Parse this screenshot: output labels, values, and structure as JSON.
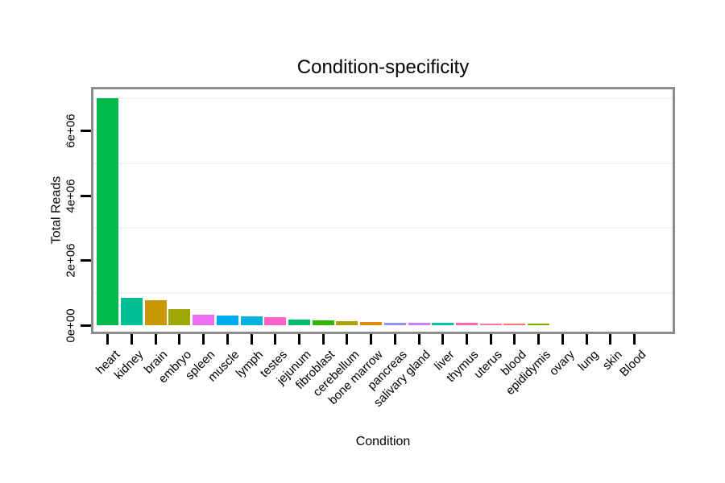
{
  "chart_data": {
    "type": "bar",
    "title": "Condition-specificity",
    "xlabel": "Condition",
    "ylabel": "Total Reads",
    "legend": "none",
    "grid": "minor-horizontal-only",
    "x_label_angle": 45,
    "bar_width_fraction": 0.9,
    "ylim": [
      0,
      7350000
    ],
    "ytick_values": [
      0,
      2000000,
      4000000,
      6000000
    ],
    "ytick_labels": [
      "0e+00",
      "2e+06",
      "4e+06",
      "6e+06"
    ],
    "minor_grid_values": [
      1000000,
      3000000,
      5000000,
      7000000
    ],
    "categories": [
      "heart",
      "kidney",
      "brain",
      "embryo",
      "spleen",
      "muscle",
      "lymph",
      "testes",
      "jejunum",
      "fibroblast",
      "cerebellum",
      "bone marrow",
      "pancreas",
      "salivary gland",
      "liver",
      "thymus",
      "uterus",
      "blood",
      "epididymis",
      "ovary",
      "lung",
      "skin",
      "Blood"
    ],
    "values": [
      7000000,
      850000,
      780000,
      500000,
      335000,
      310000,
      265000,
      240000,
      175000,
      150000,
      130000,
      90000,
      85000,
      80000,
      75000,
      70000,
      55000,
      50000,
      45000,
      8000,
      5000,
      3000,
      1000
    ],
    "bar_colors": [
      "#00B84C",
      "#00BF94",
      "#CB9700",
      "#9FA800",
      "#ED6DF1",
      "#00ACF0",
      "#00B1DF",
      "#FF63C8",
      "#00BB6E",
      "#2FB600",
      "#B1A000",
      "#E18B00",
      "#9590FF",
      "#CA7EFB",
      "#00C0AD",
      "#FF64AF",
      "#FF71A8",
      "#F8766D",
      "#7CAE00",
      "#BBBBBB",
      "#BBBBBB",
      "#BBBBBB",
      "#BBBBBB"
    ]
  },
  "style": {
    "background": "#ffffff",
    "panel_border": "#8c8c8c",
    "minor_grid_color": "#f4f4f4",
    "tick_color": "#000000",
    "text_color": "#000000"
  }
}
